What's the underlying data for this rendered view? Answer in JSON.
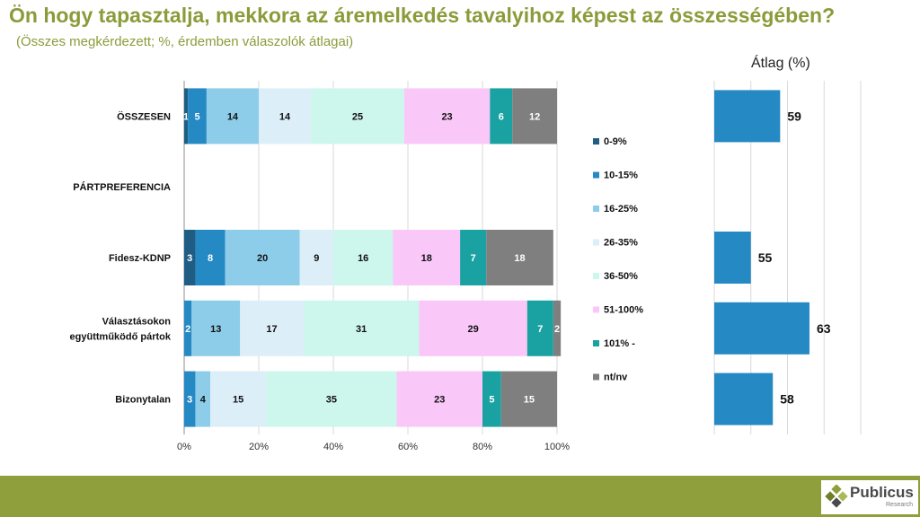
{
  "header": {
    "title": "Ön hogy tapasztalja, mekkora az áremelkedés tavalyihoz képest az összességében?",
    "subtitle": "(Összes megkérdezett; %, érdemben válaszolók átlagai)"
  },
  "average_panel": {
    "title": "Átlag (%)"
  },
  "logo": {
    "name": "Publicus",
    "tagline": "Research"
  },
  "colors": {
    "title": "#8a9c3a",
    "footer": "#8f9f3c",
    "avg_bar": "#2589c4",
    "series": [
      "#1f5d84",
      "#2589c4",
      "#8ecdea",
      "#dceef8",
      "#cdf6ec",
      "#fac8f8",
      "#1aa2a2",
      "#7f7f7f"
    ]
  },
  "chart_data": [
    {
      "type": "bar",
      "stacked": true,
      "orientation": "horizontal",
      "categories": [
        "ÖSSZESEN",
        "PÁRTPREFERENCIA",
        "Fidesz-KDNP",
        "Választásokon együttműködő pártok",
        "Bizonytalan"
      ],
      "xlim": [
        0,
        100
      ],
      "xticks": [
        "0%",
        "20%",
        "40%",
        "60%",
        "80%",
        "100%"
      ],
      "grid": true,
      "legend_position": "right",
      "series": [
        {
          "name": "0-9%",
          "values": [
            1,
            null,
            3,
            0,
            0
          ]
        },
        {
          "name": "10-15%",
          "values": [
            5,
            null,
            8,
            2,
            3
          ]
        },
        {
          "name": "16-25%",
          "values": [
            14,
            null,
            20,
            13,
            4
          ]
        },
        {
          "name": "26-35%",
          "values": [
            14,
            null,
            9,
            17,
            15
          ]
        },
        {
          "name": "36-50%",
          "values": [
            25,
            null,
            16,
            31,
            35
          ]
        },
        {
          "name": "51-100%",
          "values": [
            23,
            null,
            18,
            29,
            23
          ]
        },
        {
          "name": "101% -",
          "values": [
            6,
            null,
            7,
            7,
            5
          ]
        },
        {
          "name": "nt/nv",
          "values": [
            12,
            null,
            18,
            2,
            15
          ]
        }
      ]
    },
    {
      "type": "bar",
      "orientation": "horizontal",
      "title": "Átlag (%)",
      "categories": [
        "ÖSSZESEN",
        "PÁRTPREFERENCIA",
        "Fidesz-KDNP",
        "Választásokon együttműködő pártok",
        "Bizonytalan"
      ],
      "values": [
        59,
        null,
        55,
        63,
        58
      ],
      "xlim": [
        50,
        70
      ],
      "grid": true
    }
  ]
}
